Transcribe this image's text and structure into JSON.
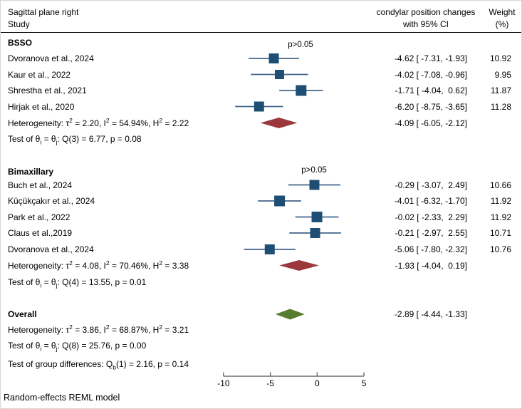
{
  "figure": {
    "title": "Sagittal plane right",
    "study_col_header": "Study",
    "effect_col_header_line1": "condylar position changes",
    "effect_col_header_line2": "with 95% CI",
    "weight_col_header_line1": "Weight",
    "weight_col_header_line2": "(%)",
    "footer": "Random-effects REML model"
  },
  "colors": {
    "marker_square": "#1f4e74",
    "ci_line": "#42658c",
    "subgroup_diamond": "#9a383c",
    "overall_diamond": "#567c2d",
    "axis": "#505050",
    "text": "#000000"
  },
  "groups": [
    {
      "label": "BSSO",
      "p_annotation": "p>0.05",
      "studies": [
        {
          "label": "Dvoranova et al., 2024",
          "effect_text": "-4.62 [ -7.31, -1.93]",
          "weight": "10.92"
        },
        {
          "label": "Kaur et al., 2022",
          "effect_text": "-4.02 [ -7.08, -0.96]",
          "weight": "9.95"
        },
        {
          "label": "Shrestha et al., 2021",
          "effect_text": "-1.71 [ -4.04,  0.62]",
          "weight": "11.87"
        },
        {
          "label": "Hirjak et al., 2020",
          "effect_text": "-6.20 [ -8.75, -3.65]",
          "weight": "11.28"
        }
      ],
      "heterogeneity": "Heterogeneity: τ^{2} = 2.20, I^{2} = 54.94%, H^{2} = 2.22",
      "pooled_text": "-4.09 [ -6.05, -2.12]",
      "test": "Test of θ_{i} = θ_{j}: Q(3) = 6.77, p = 0.08"
    },
    {
      "label": "Bimaxillary",
      "p_annotation": "p>0.05",
      "studies": [
        {
          "label": "Buch et al., 2024",
          "effect_text": "-0.29 [ -3.07,  2.49]",
          "weight": "10.66"
        },
        {
          "label": "Küçükçakır et al., 2024",
          "effect_text": "-4.01 [ -6.32, -1.70]",
          "weight": "11.92"
        },
        {
          "label": "Park et al., 2022",
          "effect_text": "-0.02 [ -2.33,  2.29]",
          "weight": "11.92"
        },
        {
          "label": "Claus et al.,2019",
          "effect_text": "-0.21 [ -2.97,  2.55]",
          "weight": "10.71"
        },
        {
          "label": "Dvoranova et al., 2024",
          "effect_text": "-5.06 [ -7.80, -2.32]",
          "weight": "10.76"
        }
      ],
      "heterogeneity": "Heterogeneity: τ^{2} = 4.08, I^{2} = 70.46%, H^{2} = 3.38",
      "pooled_text": "-1.93 [ -4.04,  0.19]",
      "test": "Test of θ_{i} = θ_{j}: Q(4) = 13.55, p = 0.01"
    }
  ],
  "overall": {
    "label": "Overall",
    "pooled_text": "-2.89 [ -4.44, -1.33]",
    "heterogeneity": "Heterogeneity: τ^{2} = 3.86, I^{2} = 68.87%, H^{2} = 3.21",
    "test": "Test of θ_{i} = θ_{j}: Q(8) = 25.76, p = 0.00",
    "group_diff": "Test of group differences: Q_{b}(1) = 2.16, p = 0.14"
  },
  "chart_data": {
    "type": "scatter",
    "variant": "forest-plot",
    "title": "Sagittal plane right",
    "effect_label": "condylar position changes with 95% CI",
    "xlabel": "",
    "xlim": [
      -10,
      5
    ],
    "x_ticks": [
      -10,
      -5,
      0,
      5
    ],
    "series": [
      {
        "name": "BSSO",
        "p_annotation": "p>0.05",
        "studies": [
          {
            "label": "Dvoranova et al., 2024",
            "est": -4.62,
            "lo": -7.31,
            "hi": -1.93,
            "weight": 10.92
          },
          {
            "label": "Kaur et al., 2022",
            "est": -4.02,
            "lo": -7.08,
            "hi": -0.96,
            "weight": 9.95
          },
          {
            "label": "Shrestha et al., 2021",
            "est": -1.71,
            "lo": -4.04,
            "hi": 0.62,
            "weight": 11.87
          },
          {
            "label": "Hirjak et al., 2020",
            "est": -6.2,
            "lo": -8.75,
            "hi": -3.65,
            "weight": 11.28
          }
        ],
        "pooled": {
          "est": -4.09,
          "lo": -6.05,
          "hi": -2.12
        }
      },
      {
        "name": "Bimaxillary",
        "p_annotation": "p>0.05",
        "studies": [
          {
            "label": "Buch et al., 2024",
            "est": -0.29,
            "lo": -3.07,
            "hi": 2.49,
            "weight": 10.66
          },
          {
            "label": "Küçükçakır et al., 2024",
            "est": -4.01,
            "lo": -6.32,
            "hi": -1.7,
            "weight": 11.92
          },
          {
            "label": "Park et al., 2022",
            "est": -0.02,
            "lo": -2.33,
            "hi": 2.29,
            "weight": 11.92
          },
          {
            "label": "Claus et al.,2019",
            "est": -0.21,
            "lo": -2.97,
            "hi": 2.55,
            "weight": 10.71
          },
          {
            "label": "Dvoranova et al., 2024",
            "est": -5.06,
            "lo": -7.8,
            "hi": -2.32,
            "weight": 10.76
          }
        ],
        "pooled": {
          "est": -1.93,
          "lo": -4.04,
          "hi": 0.19
        }
      }
    ],
    "overall": {
      "est": -2.89,
      "lo": -4.44,
      "hi": -1.33
    },
    "model_note": "Random-effects REML model"
  }
}
